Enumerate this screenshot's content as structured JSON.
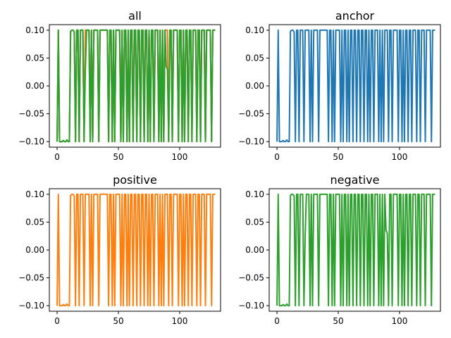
{
  "chart_data": [
    {
      "type": "line",
      "title": "all",
      "xlim": [
        -6.35,
        133.35
      ],
      "ylim": [
        -0.11,
        0.11
      ],
      "xticks": [
        0,
        50,
        100
      ],
      "yticks": [
        -0.1,
        -0.05,
        0.0,
        0.05,
        0.1
      ],
      "xtick_labels": [
        "0",
        "50",
        "100"
      ],
      "ytick_labels": [
        "−0.10",
        "−0.05",
        "0.00",
        "0.05",
        "0.10"
      ],
      "grid": false,
      "series_refs": [
        "anchor",
        "positive",
        "negative"
      ]
    },
    {
      "type": "line",
      "title": "anchor",
      "xlim": [
        -6.35,
        133.35
      ],
      "ylim": [
        -0.11,
        0.11
      ],
      "xticks": [
        0,
        50,
        100
      ],
      "yticks": [
        -0.1,
        -0.05,
        0.0,
        0.05,
        0.1
      ],
      "xtick_labels": [
        "0",
        "50",
        "100"
      ],
      "ytick_labels": [
        "−0.10",
        "−0.05",
        "0.00",
        "0.05",
        "0.10"
      ],
      "grid": false,
      "series_refs": [
        "anchor"
      ]
    },
    {
      "type": "line",
      "title": "positive",
      "xlim": [
        -6.35,
        133.35
      ],
      "ylim": [
        -0.11,
        0.11
      ],
      "xticks": [
        0,
        50,
        100
      ],
      "yticks": [
        -0.1,
        -0.05,
        0.0,
        0.05,
        0.1
      ],
      "xtick_labels": [
        "0",
        "50",
        "100"
      ],
      "ytick_labels": [
        "−0.10",
        "−0.05",
        "0.00",
        "0.05",
        "0.10"
      ],
      "grid": false,
      "series_refs": [
        "positive"
      ]
    },
    {
      "type": "line",
      "title": "negative",
      "xlim": [
        -6.35,
        133.35
      ],
      "ylim": [
        -0.11,
        0.11
      ],
      "xticks": [
        0,
        50,
        100
      ],
      "yticks": [
        -0.1,
        -0.05,
        0.0,
        0.05,
        0.1
      ],
      "xtick_labels": [
        "0",
        "50",
        "100"
      ],
      "ytick_labels": [
        "−0.10",
        "−0.05",
        "0.00",
        "0.05",
        "0.10"
      ],
      "grid": false,
      "series_refs": [
        "negative"
      ]
    }
  ],
  "series_data": {
    "anchor": {
      "color": "#1f77b4",
      "values": [
        -0.1,
        0.1,
        -0.1,
        -0.1,
        -0.1,
        -0.098,
        -0.1,
        -0.1,
        -0.097,
        -0.1,
        -0.1,
        0.098,
        0.1,
        0.1,
        0.097,
        -0.1,
        0.1,
        0.1,
        -0.1,
        0.1,
        0.1,
        0.1,
        -0.1,
        0.1,
        0.1,
        0.1,
        0.1,
        -0.1,
        0.1,
        -0.1,
        0.1,
        0.1,
        0.1,
        0.1,
        -0.1,
        0.1,
        0.1,
        0.1,
        0.1,
        0.1,
        0.1,
        0.1,
        -0.1,
        0.1,
        0.1,
        -0.1,
        0.1,
        -0.1,
        0.1,
        0.1,
        0.1,
        0.1,
        -0.1,
        0.1,
        -0.1,
        0.1,
        0.1,
        -0.1,
        0.1,
        -0.1,
        0.1,
        0.1,
        -0.1,
        0.1,
        0.1,
        -0.1,
        0.1,
        0.1,
        -0.1,
        0.1,
        0.1,
        -0.1,
        0.1,
        0.1,
        -0.1,
        0.1,
        -0.1,
        0.1,
        0.1,
        -0.1,
        0.1,
        0.1,
        0.1,
        -0.1,
        0.1,
        -0.1,
        0.1,
        -0.1,
        0.1,
        0.1,
        0.1,
        -0.1,
        0.1,
        0.1,
        -0.1,
        0.1,
        0.1,
        0.1,
        0.1,
        -0.1,
        0.1,
        0.1,
        -0.1,
        0.1,
        -0.1,
        0.1,
        0.1,
        -0.1,
        0.1,
        0.1,
        -0.1,
        0.1,
        0.1,
        0.1,
        -0.1,
        0.1,
        0.1,
        -0.1,
        0.1,
        0.1,
        0.1,
        -0.1,
        0.1,
        0.1,
        0.1,
        0.1,
        -0.1,
        0.1,
        0.1,
        0.1
      ]
    },
    "positive": {
      "color": "#ff7f0e",
      "values": [
        -0.1,
        0.1,
        -0.1,
        -0.1,
        -0.1,
        -0.098,
        -0.1,
        -0.1,
        -0.097,
        -0.1,
        -0.1,
        0.098,
        0.1,
        0.1,
        0.097,
        -0.1,
        0.1,
        0.1,
        -0.1,
        0.1,
        0.1,
        0.1,
        -0.1,
        0.1,
        0.1,
        0.1,
        0.1,
        -0.1,
        0.1,
        -0.1,
        0.1,
        0.1,
        0.1,
        0.1,
        -0.1,
        0.1,
        0.1,
        0.1,
        0.1,
        0.1,
        0.1,
        0.1,
        -0.1,
        0.1,
        0.1,
        -0.1,
        0.1,
        -0.1,
        0.1,
        0.1,
        0.1,
        0.1,
        -0.1,
        0.1,
        -0.1,
        0.1,
        0.1,
        -0.1,
        0.1,
        -0.1,
        0.1,
        0.1,
        -0.1,
        0.1,
        0.1,
        -0.1,
        0.1,
        0.1,
        -0.1,
        0.1,
        0.1,
        -0.1,
        0.1,
        0.1,
        -0.1,
        0.1,
        -0.1,
        0.1,
        0.1,
        -0.1,
        0.1,
        0.1,
        0.1,
        -0.1,
        0.1,
        -0.1,
        0.1,
        -0.1,
        0.1,
        0.1,
        0.1,
        -0.1,
        0.1,
        0.1,
        -0.1,
        0.1,
        0.1,
        0.1,
        0.1,
        -0.1,
        0.1,
        0.1,
        -0.1,
        0.1,
        -0.1,
        0.1,
        0.1,
        -0.1,
        0.1,
        0.1,
        -0.1,
        0.1,
        0.1,
        0.1,
        -0.1,
        0.1,
        0.1,
        -0.1,
        0.1,
        0.1,
        0.1,
        -0.1,
        0.1,
        0.1,
        0.1,
        0.1,
        -0.1,
        0.1,
        0.1,
        0.1
      ]
    },
    "negative": {
      "color": "#2ca02c",
      "values": [
        -0.1,
        0.1,
        -0.1,
        -0.1,
        -0.1,
        -0.098,
        -0.1,
        -0.1,
        -0.097,
        -0.1,
        -0.1,
        0.098,
        0.1,
        0.1,
        0.097,
        -0.1,
        0.1,
        0.1,
        -0.1,
        0.1,
        0.1,
        0.1,
        -0.1,
        0.025,
        0.1,
        0.1,
        0.1,
        -0.1,
        0.1,
        -0.1,
        0.1,
        0.1,
        0.1,
        0.1,
        -0.1,
        0.1,
        0.1,
        0.1,
        0.1,
        0.1,
        0.1,
        0.1,
        -0.1,
        0.1,
        0.1,
        -0.1,
        0.1,
        -0.1,
        0.1,
        0.1,
        0.1,
        0.1,
        -0.1,
        0.1,
        -0.1,
        0.1,
        0.1,
        -0.1,
        0.1,
        -0.1,
        0.1,
        0.1,
        -0.1,
        0.1,
        0.1,
        -0.1,
        0.1,
        0.1,
        -0.1,
        0.1,
        0.1,
        -0.1,
        0.1,
        0.1,
        -0.1,
        0.1,
        -0.1,
        0.1,
        0.1,
        -0.1,
        0.1,
        0.1,
        0.1,
        -0.1,
        0.1,
        -0.1,
        0.1,
        -0.1,
        0.1,
        0.035,
        0.03,
        -0.1,
        0.1,
        0.1,
        -0.1,
        0.1,
        0.1,
        0.1,
        0.1,
        -0.1,
        0.1,
        0.1,
        -0.1,
        0.1,
        -0.1,
        0.1,
        0.1,
        -0.1,
        0.1,
        0.1,
        -0.1,
        0.1,
        0.1,
        0.1,
        -0.1,
        0.1,
        0.1,
        -0.1,
        0.1,
        0.1,
        0.1,
        -0.1,
        0.1,
        0.1,
        0.1,
        0.1,
        -0.1,
        0.1,
        0.1,
        0.1
      ]
    }
  }
}
